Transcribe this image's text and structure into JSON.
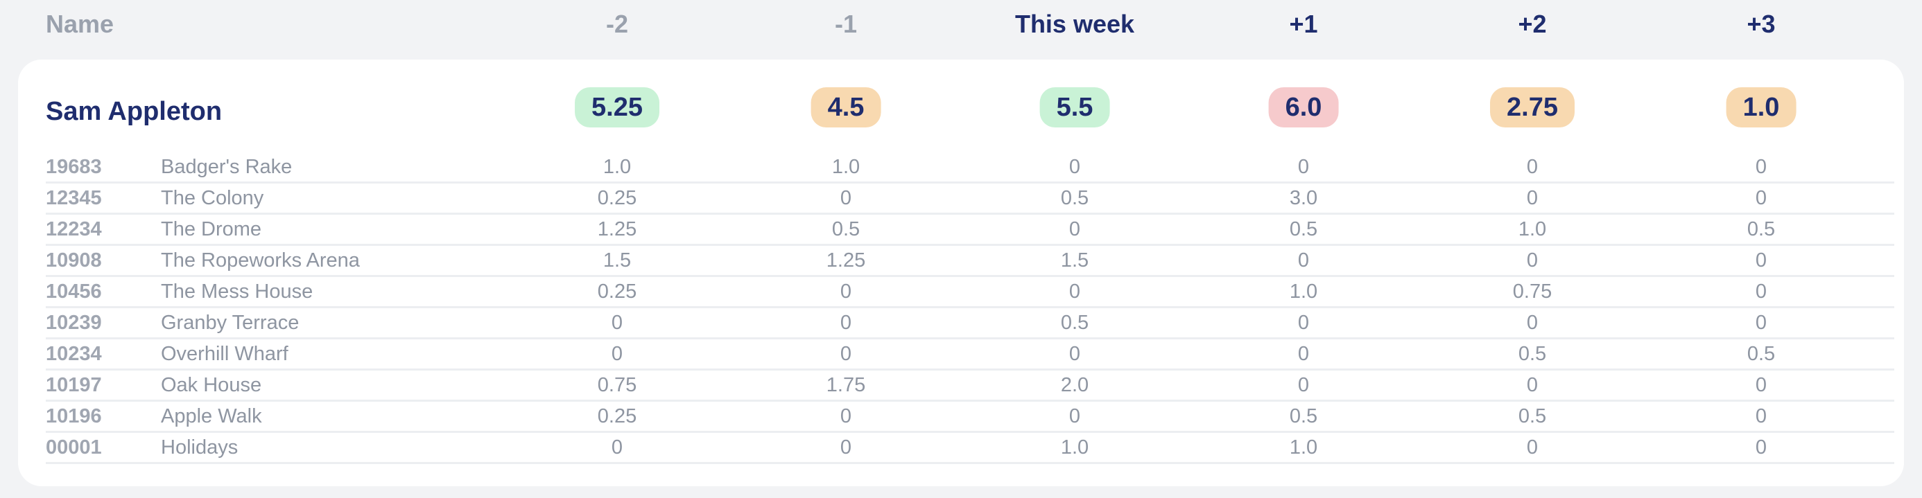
{
  "header": {
    "name_label": "Name",
    "columns": [
      {
        "label": "-2",
        "kind": "past"
      },
      {
        "label": "-1",
        "kind": "past"
      },
      {
        "label": "This week",
        "kind": "current"
      },
      {
        "label": "+1",
        "kind": "future"
      },
      {
        "label": "+2",
        "kind": "future"
      },
      {
        "label": "+3",
        "kind": "future"
      }
    ]
  },
  "colors": {
    "green": "#c9f2d6",
    "orange": "#f8d9b0",
    "red": "#f6cacc",
    "text_dark": "#1f2d6e",
    "text_muted": "#9aa1ad"
  },
  "person": {
    "name": "Sam Appleton",
    "totals": [
      {
        "value": "5.25",
        "color": "green"
      },
      {
        "value": "4.5",
        "color": "orange"
      },
      {
        "value": "5.5",
        "color": "green"
      },
      {
        "value": "6.0",
        "color": "red"
      },
      {
        "value": "2.75",
        "color": "orange"
      },
      {
        "value": "1.0",
        "color": "orange"
      }
    ],
    "projects": [
      {
        "code": "19683",
        "name": "Badger's Rake",
        "values": [
          "1.0",
          "1.0",
          "0",
          "0",
          "0",
          "0"
        ]
      },
      {
        "code": "12345",
        "name": "The Colony",
        "values": [
          "0.25",
          "0",
          "0.5",
          "3.0",
          "0",
          "0"
        ]
      },
      {
        "code": "12234",
        "name": "The Drome",
        "values": [
          "1.25",
          "0.5",
          "0",
          "0.5",
          "1.0",
          "0.5"
        ]
      },
      {
        "code": "10908",
        "name": "The Ropeworks Arena",
        "values": [
          "1.5",
          "1.25",
          "1.5",
          "0",
          "0",
          "0"
        ]
      },
      {
        "code": "10456",
        "name": "The Mess House",
        "values": [
          "0.25",
          "0",
          "0",
          "1.0",
          "0.75",
          "0"
        ]
      },
      {
        "code": "10239",
        "name": "Granby Terrace",
        "values": [
          "0",
          "0",
          "0.5",
          "0",
          "0",
          "0"
        ]
      },
      {
        "code": "10234",
        "name": "Overhill Wharf",
        "values": [
          "0",
          "0",
          "0",
          "0",
          "0.5",
          "0.5"
        ]
      },
      {
        "code": "10197",
        "name": "Oak House",
        "values": [
          "0.75",
          "1.75",
          "2.0",
          "0",
          "0",
          "0"
        ]
      },
      {
        "code": "10196",
        "name": "Apple Walk",
        "values": [
          "0.25",
          "0",
          "0",
          "0.5",
          "0.5",
          "0"
        ]
      },
      {
        "code": "00001",
        "name": "Holidays",
        "values": [
          "0",
          "0",
          "1.0",
          "1.0",
          "0",
          "0"
        ]
      }
    ]
  }
}
